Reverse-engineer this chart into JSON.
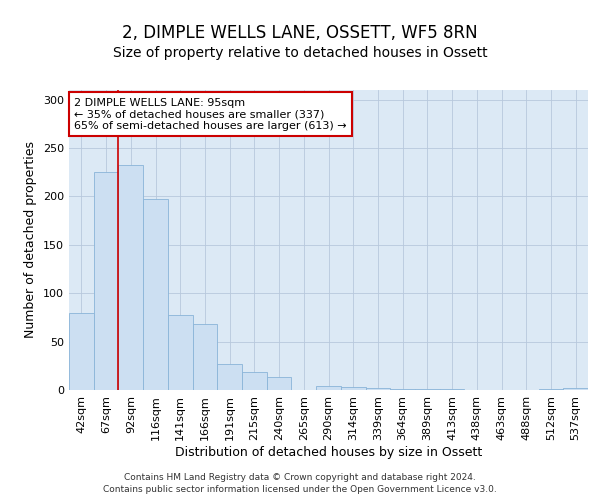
{
  "title": "2, DIMPLE WELLS LANE, OSSETT, WF5 8RN",
  "subtitle": "Size of property relative to detached houses in Ossett",
  "xlabel": "Distribution of detached houses by size in Ossett",
  "ylabel": "Number of detached properties",
  "bar_values": [
    80,
    225,
    232,
    197,
    78,
    68,
    27,
    19,
    13,
    0,
    4,
    3,
    2,
    1,
    1,
    1,
    0,
    0,
    0,
    1,
    2
  ],
  "bar_labels": [
    "42sqm",
    "67sqm",
    "92sqm",
    "116sqm",
    "141sqm",
    "166sqm",
    "191sqm",
    "215sqm",
    "240sqm",
    "265sqm",
    "290sqm",
    "314sqm",
    "339sqm",
    "364sqm",
    "389sqm",
    "413sqm",
    "438sqm",
    "463sqm",
    "488sqm",
    "512sqm",
    "537sqm"
  ],
  "bar_color": "#ccdff2",
  "bar_edge_color": "#8ab4d8",
  "red_line_index": 2,
  "annotation_text": "2 DIMPLE WELLS LANE: 95sqm\n← 35% of detached houses are smaller (337)\n65% of semi-detached houses are larger (613) →",
  "annotation_box_color": "#ffffff",
  "annotation_border_color": "#cc0000",
  "ylim": [
    0,
    310
  ],
  "yticks": [
    0,
    50,
    100,
    150,
    200,
    250,
    300
  ],
  "footer_line1": "Contains HM Land Registry data © Crown copyright and database right 2024.",
  "footer_line2": "Contains public sector information licensed under the Open Government Licence v3.0.",
  "title_fontsize": 12,
  "subtitle_fontsize": 10,
  "axis_label_fontsize": 9,
  "tick_fontsize": 8,
  "background_color": "#dce9f5"
}
